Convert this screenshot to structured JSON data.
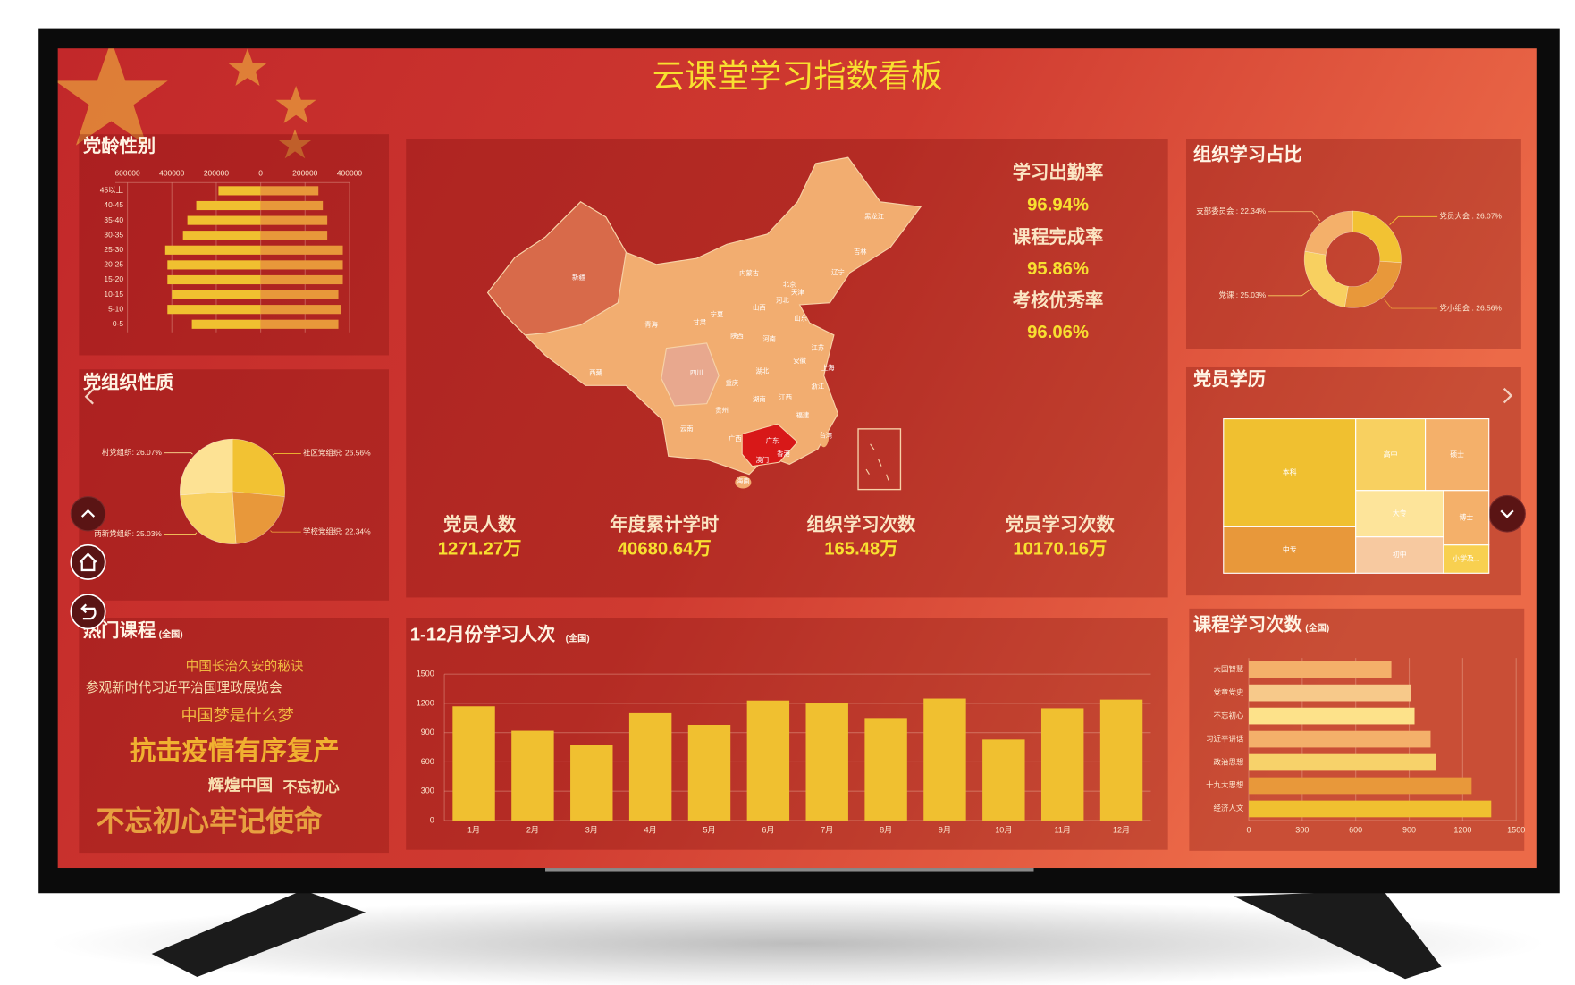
{
  "title": "云课堂学习指数看板",
  "kpis": [
    {
      "label": "学习出勤率",
      "value": "96.94%"
    },
    {
      "label": "课程完成率",
      "value": "95.86%"
    },
    {
      "label": "考核优秀率",
      "value": "96.06%"
    }
  ],
  "stats": [
    {
      "label": "党员人数",
      "value": "1271.27万"
    },
    {
      "label": "年度累计学时",
      "value": "40680.64万"
    },
    {
      "label": "组织学习次数",
      "value": "165.48万"
    },
    {
      "label": "党员学习次数",
      "value": "10170.16万"
    }
  ],
  "map": {
    "provinces": [
      "新疆",
      "西藏",
      "青海",
      "甘肃",
      "内蒙古",
      "黑龙江",
      "吉林",
      "辽宁",
      "北京",
      "天津",
      "河北",
      "山西",
      "山东",
      "宁夏",
      "陕西",
      "河南",
      "江苏",
      "安徽",
      "上海",
      "四川",
      "重庆",
      "湖北",
      "浙江",
      "湖南",
      "江西",
      "福建",
      "贵州",
      "云南",
      "广西",
      "广东",
      "台湾",
      "澳门",
      "香港",
      "海南"
    ]
  },
  "hot_courses": {
    "title": "热门课程",
    "scope": "(全国)",
    "words": [
      "中国长治久安的秘诀",
      "参观新时代习近平治国理政展览会",
      "中国梦是什么梦",
      "抗击疫情有序复产",
      "辉煌中国",
      "不忘初心",
      "不忘初心牢记使命"
    ]
  },
  "chart_data": [
    {
      "type": "pyramid",
      "title": "党龄性别",
      "categories": [
        "45以上",
        "40-45",
        "35-40",
        "30-35",
        "25-30",
        "20-25",
        "15-20",
        "10-15",
        "5-10",
        "0-5"
      ],
      "series": [
        {
          "color": "#f0c030",
          "values": [
            -190000,
            -290000,
            -330000,
            -350000,
            -430000,
            -420000,
            -420000,
            -400000,
            -420000,
            -310000
          ]
        },
        {
          "color": "#e8983a",
          "values": [
            260000,
            280000,
            300000,
            300000,
            370000,
            370000,
            370000,
            350000,
            360000,
            350000
          ]
        }
      ],
      "xlim": [
        -600000,
        400000
      ],
      "xticks": [
        {
          "value": -600000,
          "label": "600000"
        },
        {
          "value": -400000,
          "label": "400000"
        },
        {
          "value": -200000,
          "label": "200000"
        },
        0,
        200000,
        400000
      ],
      "grid": true
    },
    {
      "type": "pie",
      "title": "党组织性质",
      "values": [
        26.56,
        22.34,
        25.03,
        26.07
      ],
      "value_labels": [
        "社区党组织: 26.56%",
        "学校党组织: 22.34%",
        "两新党组织: 25.03%",
        "村党组织: 26.07%"
      ],
      "colors": [
        "#f2c233",
        "#e8983a",
        "#f8d060",
        "#fde294"
      ]
    },
    {
      "type": "donut",
      "title": "组织学习占比",
      "values": [
        26.07,
        26.56,
        25.03,
        22.34
      ],
      "value_labels": [
        "党员大会 : 26.07%",
        "党小组会 : 26.56%",
        "党课 : 25.03%",
        "支部委员会 : 22.34%"
      ],
      "colors": [
        "#f2c233",
        "#e8983a",
        "#f8d060",
        "#f4b06a"
      ]
    },
    {
      "type": "treemap",
      "title": "党员学历",
      "categories": [
        "本科",
        "中专",
        "高中",
        "硕士",
        "大专",
        "初中",
        "博士",
        "小学及..."
      ],
      "values": [
        14017,
        6026,
        4899,
        4473,
        4002,
        3132,
        2430,
        1260
      ],
      "colors": [
        "#f0c030",
        "#e8983a",
        "#f8d060",
        "#f4b06a",
        "#fde49a",
        "#f7c9a0",
        "#f4b06a",
        "#f8d050"
      ]
    },
    {
      "type": "bar",
      "title": "1-12月份学习人次",
      "subtitle": "(全国)",
      "categories": [
        "1月",
        "2月",
        "3月",
        "4月",
        "5月",
        "6月",
        "7月",
        "8月",
        "9月",
        "10月",
        "11月",
        "12月"
      ],
      "values": [
        1170,
        920,
        770,
        1100,
        980,
        1230,
        1200,
        1050,
        1250,
        830,
        1150,
        1240
      ],
      "color": "#f0c030",
      "ylim": [
        0,
        1500
      ],
      "yticks": [
        0,
        300,
        600,
        900,
        1200,
        1500
      ],
      "grid": true
    },
    {
      "type": "barh",
      "title": "课程学习次数",
      "subtitle": "(全国)",
      "categories": [
        "大国智慧",
        "党章党史",
        "不忘初心",
        "习近平讲话",
        "政治思想",
        "十九大思想",
        "经济人文"
      ],
      "values": [
        800,
        910,
        930,
        1020,
        1050,
        1250,
        1360
      ],
      "colors": [
        "#f4b06a",
        "#f7c98a",
        "#fde28a",
        "#f4b06a",
        "#f7d26a",
        "#e8983a",
        "#f0c030"
      ],
      "xlim": [
        0,
        1500
      ],
      "xticks": [
        0,
        300,
        600,
        900,
        1200,
        1500
      ],
      "grid": true
    }
  ]
}
